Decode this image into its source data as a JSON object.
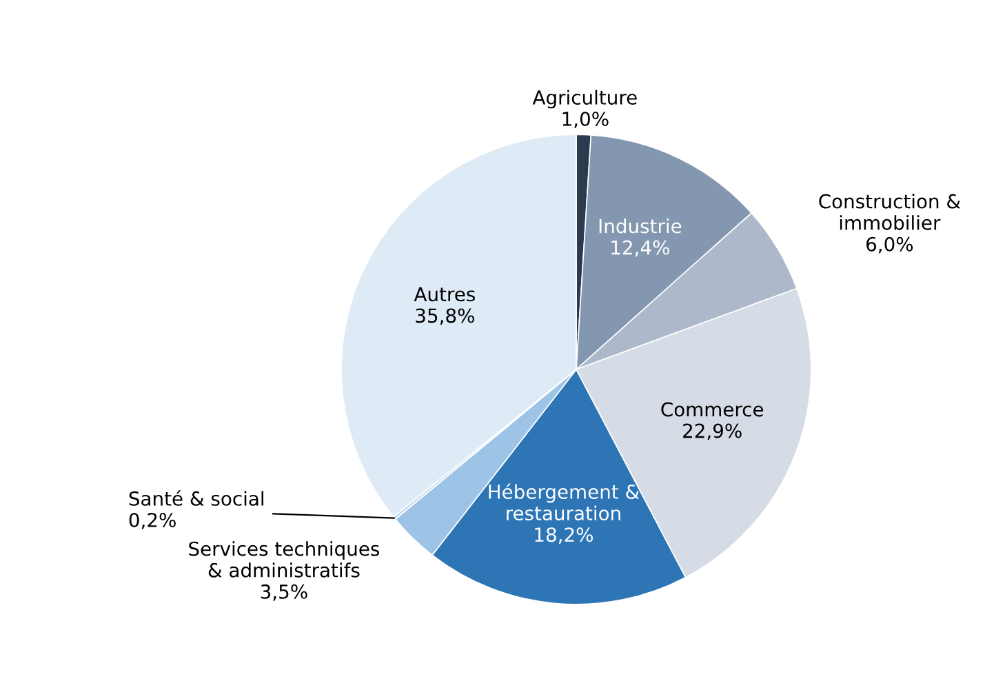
{
  "chart_data": {
    "type": "pie",
    "categories": [
      "Agriculture",
      "Industrie",
      "Construction &\nimmobilier",
      "Commerce",
      "Hébergement &\nrestauration",
      "Services techniques\n& administratifs",
      "Santé & social",
      "Autres"
    ],
    "values": [
      1.0,
      12.4,
      6.0,
      22.9,
      18.2,
      3.5,
      0.2,
      35.8
    ],
    "value_labels": [
      "1,0%",
      "12,4%",
      "6,0%",
      "22,9%",
      "18,2%",
      "3,5%",
      "0,2%",
      "35,8%"
    ],
    "colors": [
      "#2b3a4f",
      "#8497b0",
      "#adb9ca",
      "#d6dce5",
      "#2e75b6",
      "#9dc3e6",
      "#bdd7ee",
      "#deebf7"
    ],
    "legend": false
  }
}
